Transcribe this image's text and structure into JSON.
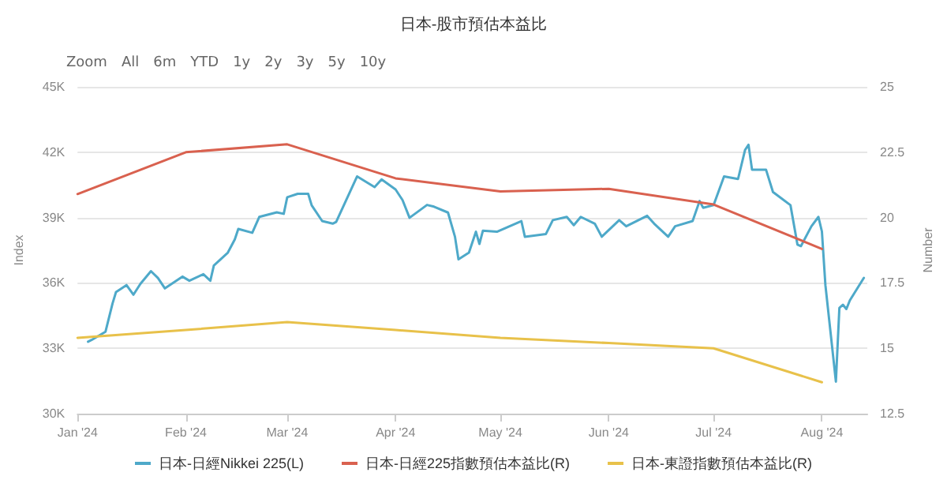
{
  "chart_data": {
    "type": "line",
    "title": "日本-股市預估本益比",
    "annotations": [
      "Zoom",
      "All",
      "6m",
      "YTD",
      "1y",
      "2y",
      "3y",
      "5y",
      "10y"
    ],
    "ylabel": "Index",
    "y2label": "Number",
    "xlim": [
      "2024-01-01",
      "2024-08-14"
    ],
    "xticks": [
      {
        "value": "2024-01-01",
        "label": "Jan '24"
      },
      {
        "value": "2024-02-01",
        "label": "Feb '24"
      },
      {
        "value": "2024-03-01",
        "label": "Mar '24"
      },
      {
        "value": "2024-04-01",
        "label": "Apr '24"
      },
      {
        "value": "2024-05-01",
        "label": "May '24"
      },
      {
        "value": "2024-06-01",
        "label": "Jun '24"
      },
      {
        "value": "2024-07-01",
        "label": "Jul '24"
      },
      {
        "value": "2024-08-01",
        "label": "Aug '24"
      }
    ],
    "ylim": [
      30000,
      45000
    ],
    "yticks": [
      {
        "value": 30000,
        "label": "30K"
      },
      {
        "value": 33000,
        "label": "33K"
      },
      {
        "value": 36000,
        "label": "36K"
      },
      {
        "value": 39000,
        "label": "39K"
      },
      {
        "value": 42000,
        "label": "42K"
      },
      {
        "value": 45000,
        "label": "45K"
      }
    ],
    "y2lim": [
      12.5,
      25
    ],
    "y2ticks": [
      12.5,
      15,
      17.5,
      20,
      22.5,
      25
    ],
    "grid": "y",
    "legend": "bottom",
    "marker": "none",
    "line_style": "solid",
    "series": [
      {
        "name": "日本-日經Nikkei 225(L)",
        "color": "#4ea9c9",
        "axis": "y",
        "x": [
          "2024-01-04",
          "2024-01-05",
          "2024-01-09",
          "2024-01-11",
          "2024-01-12",
          "2024-01-15",
          "2024-01-17",
          "2024-01-19",
          "2024-01-22",
          "2024-01-24",
          "2024-01-26",
          "2024-01-31",
          "2024-02-02",
          "2024-02-06",
          "2024-02-08",
          "2024-02-09",
          "2024-02-13",
          "2024-02-15",
          "2024-02-16",
          "2024-02-20",
          "2024-02-22",
          "2024-02-27",
          "2024-02-29",
          "2024-03-01",
          "2024-03-04",
          "2024-03-07",
          "2024-03-08",
          "2024-03-11",
          "2024-03-14",
          "2024-03-15",
          "2024-03-21",
          "2024-03-26",
          "2024-03-28",
          "2024-04-01",
          "2024-04-03",
          "2024-04-05",
          "2024-04-10",
          "2024-04-12",
          "2024-04-16",
          "2024-04-18",
          "2024-04-19",
          "2024-04-22",
          "2024-04-24",
          "2024-04-25",
          "2024-04-26",
          "2024-04-30",
          "2024-05-07",
          "2024-05-08",
          "2024-05-14",
          "2024-05-16",
          "2024-05-20",
          "2024-05-22",
          "2024-05-24",
          "2024-05-28",
          "2024-05-30",
          "2024-06-04",
          "2024-06-06",
          "2024-06-12",
          "2024-06-14",
          "2024-06-18",
          "2024-06-20",
          "2024-06-25",
          "2024-06-27",
          "2024-06-28",
          "2024-07-01",
          "2024-07-04",
          "2024-07-08",
          "2024-07-10",
          "2024-07-11",
          "2024-07-12",
          "2024-07-16",
          "2024-07-18",
          "2024-07-23",
          "2024-07-25",
          "2024-07-26",
          "2024-07-29",
          "2024-07-31",
          "2024-08-01",
          "2024-08-02",
          "2024-08-05",
          "2024-08-06",
          "2024-08-07",
          "2024-08-08",
          "2024-08-09",
          "2024-08-13"
        ],
        "values": [
          33300,
          33380,
          33760,
          35050,
          35580,
          35900,
          35460,
          35960,
          36540,
          36230,
          35750,
          36290,
          36100,
          36400,
          36100,
          36800,
          37390,
          38000,
          38480,
          38300,
          39030,
          39240,
          39170,
          39930,
          40090,
          40090,
          39560,
          38840,
          38720,
          38800,
          40890,
          40400,
          40750,
          40290,
          39800,
          38990,
          39580,
          39500,
          39230,
          38120,
          37080,
          37390,
          38350,
          37790,
          38400,
          38350,
          38840,
          38120,
          38240,
          38880,
          39030,
          38650,
          39030,
          38720,
          38120,
          38880,
          38600,
          39080,
          38720,
          38120,
          38600,
          38840,
          39760,
          39450,
          39570,
          40890,
          40770,
          42100,
          42340,
          41200,
          41200,
          40170,
          39570,
          37760,
          37690,
          38600,
          39030,
          38360,
          35900,
          31470,
          34850,
          35000,
          34800,
          35200,
          36230
        ]
      },
      {
        "name": "日本-日經225指數預估本益比(R)",
        "color": "#d9614f",
        "axis": "y2",
        "x": [
          "2024-01-01",
          "2024-02-01",
          "2024-03-01",
          "2024-04-01",
          "2024-05-01",
          "2024-06-01",
          "2024-07-01",
          "2024-08-01"
        ],
        "values": [
          20.9,
          22.5,
          22.8,
          21.5,
          21.0,
          21.1,
          20.5,
          18.8
        ]
      },
      {
        "name": "日本-東證指數預估本益比(R)",
        "color": "#e8c14a",
        "axis": "y2",
        "x": [
          "2024-01-01",
          "2024-02-01",
          "2024-03-01",
          "2024-04-01",
          "2024-05-01",
          "2024-06-01",
          "2024-07-01",
          "2024-08-01"
        ],
        "values": [
          15.4,
          15.7,
          16.0,
          15.7,
          15.4,
          15.2,
          15.0,
          13.7
        ]
      }
    ]
  }
}
